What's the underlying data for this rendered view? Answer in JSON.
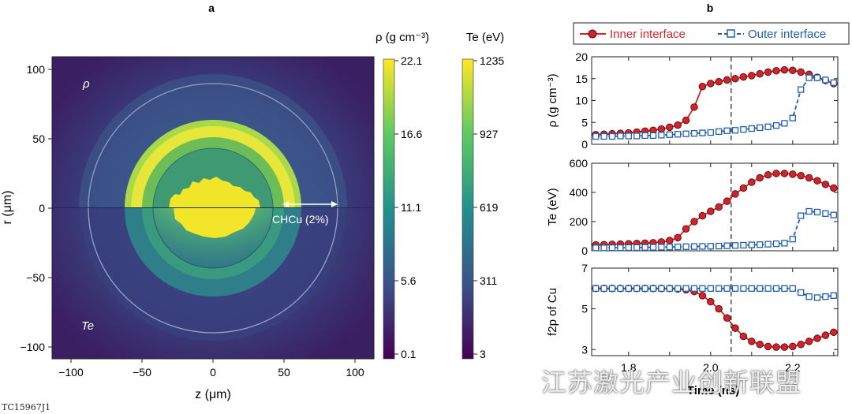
{
  "panel_a": {
    "label": "a",
    "xlabel": "z (μm)",
    "ylabel": "r (μm)",
    "x_ticks": [
      "−100",
      "−50",
      "0",
      "50",
      "100"
    ],
    "y_ticks": [
      "100",
      "50",
      "0",
      "−50",
      "−100"
    ],
    "upper_label": "ρ",
    "lower_label": "Te",
    "annotation": "CHCu (2%)",
    "colorbar_rho": {
      "title": "ρ (g cm⁻³)",
      "ticks": [
        "22.1",
        "16.6",
        "11.1",
        "5.6",
        "0.1"
      ]
    },
    "colorbar_te": {
      "title": "Te (eV)",
      "ticks": [
        "1235",
        "927",
        "619",
        "311",
        "3"
      ]
    }
  },
  "panel_b": {
    "label": "b",
    "xlabel": "Time (ns)",
    "x_ticks": [
      "1.8",
      "2.0",
      "2.2"
    ]
  },
  "figure_id": "TC15967J1",
  "watermark": "江苏激光产业创新联盟",
  "colors": {
    "inner": "#d2232a",
    "outer": "#1f5fb0"
  },
  "chart_data": [
    {
      "type": "heatmap",
      "title": "",
      "xlabel": "z (μm)",
      "ylabel": "r (μm)",
      "xlim": [
        -110,
        110
      ],
      "ylim": [
        -110,
        110
      ],
      "upper_half": "ρ (g cm⁻³)",
      "lower_half": "Te (eV)",
      "rho_range": [
        0.1,
        22.1
      ],
      "te_range": [
        3,
        1235
      ],
      "annotation": "CHCu (2%)"
    },
    {
      "type": "line",
      "xlabel": "Time (ns)",
      "ylabel": "ρ (g cm⁻³)",
      "xlim": [
        1.71,
        2.31
      ],
      "ylim": [
        0,
        20
      ],
      "legend": "top",
      "vline": 2.05,
      "x": [
        1.72,
        1.74,
        1.76,
        1.78,
        1.8,
        1.82,
        1.84,
        1.86,
        1.88,
        1.9,
        1.92,
        1.94,
        1.96,
        1.98,
        2.0,
        2.02,
        2.04,
        2.06,
        2.08,
        2.1,
        2.12,
        2.14,
        2.16,
        2.18,
        2.2,
        2.22,
        2.24,
        2.26,
        2.28,
        2.3
      ],
      "series": [
        {
          "name": "Inner interface",
          "values": [
            2.2,
            2.3,
            2.4,
            2.5,
            2.6,
            2.8,
            3.0,
            3.2,
            3.5,
            3.9,
            4.4,
            5.5,
            8.5,
            13.2,
            13.9,
            14.3,
            14.7,
            15.0,
            15.4,
            15.7,
            16.1,
            16.5,
            16.8,
            17.0,
            16.9,
            16.5,
            16.0,
            15.3,
            14.6,
            13.9
          ]
        },
        {
          "name": "Outer interface",
          "values": [
            1.8,
            1.8,
            1.8,
            1.9,
            1.9,
            1.9,
            2.0,
            2.0,
            2.1,
            2.2,
            2.3,
            2.4,
            2.5,
            2.6,
            2.7,
            2.9,
            3.1,
            3.2,
            3.4,
            3.6,
            3.8,
            4.0,
            4.3,
            4.8,
            6.0,
            12.5,
            15.2,
            15.2,
            14.7,
            14.1
          ]
        }
      ]
    },
    {
      "type": "line",
      "xlabel": "Time (ns)",
      "ylabel": "Te (eV)",
      "xlim": [
        1.71,
        2.31
      ],
      "ylim": [
        0,
        600
      ],
      "vline": 2.05,
      "x": [
        1.72,
        1.74,
        1.76,
        1.78,
        1.8,
        1.82,
        1.84,
        1.86,
        1.88,
        1.9,
        1.92,
        1.94,
        1.96,
        1.98,
        2.0,
        2.02,
        2.04,
        2.06,
        2.08,
        2.1,
        2.12,
        2.14,
        2.16,
        2.18,
        2.2,
        2.22,
        2.24,
        2.26,
        2.28,
        2.3
      ],
      "series": [
        {
          "name": "Inner interface",
          "values": [
            40,
            42,
            44,
            46,
            48,
            50,
            52,
            55,
            60,
            70,
            90,
            150,
            200,
            240,
            270,
            300,
            340,
            390,
            430,
            470,
            500,
            520,
            530,
            530,
            525,
            515,
            500,
            480,
            455,
            430
          ]
        },
        {
          "name": "Outer interface",
          "values": [
            20,
            20,
            21,
            21,
            22,
            22,
            23,
            24,
            25,
            26,
            27,
            28,
            29,
            30,
            31,
            32,
            34,
            36,
            38,
            40,
            42,
            45,
            48,
            52,
            80,
            240,
            270,
            265,
            255,
            245
          ]
        }
      ]
    },
    {
      "type": "line",
      "xlabel": "Time (ns)",
      "ylabel": "f2p of Cu",
      "xlim": [
        1.71,
        2.31
      ],
      "ylim": [
        2.7,
        7
      ],
      "vline": 2.05,
      "x": [
        1.72,
        1.74,
        1.76,
        1.78,
        1.8,
        1.82,
        1.84,
        1.86,
        1.88,
        1.9,
        1.92,
        1.94,
        1.96,
        1.98,
        2.0,
        2.02,
        2.04,
        2.06,
        2.08,
        2.1,
        2.12,
        2.14,
        2.16,
        2.18,
        2.2,
        2.22,
        2.24,
        2.26,
        2.28,
        2.3
      ],
      "series": [
        {
          "name": "Inner interface",
          "values": [
            6.0,
            6.0,
            6.0,
            6.0,
            6.0,
            6.0,
            6.0,
            6.0,
            6.0,
            6.0,
            5.98,
            5.94,
            5.85,
            5.65,
            5.35,
            5.0,
            4.55,
            4.05,
            3.65,
            3.4,
            3.25,
            3.15,
            3.12,
            3.12,
            3.15,
            3.25,
            3.4,
            3.55,
            3.7,
            3.85
          ]
        },
        {
          "name": "Outer interface",
          "values": [
            6.0,
            6.0,
            6.0,
            6.0,
            6.0,
            6.0,
            6.0,
            6.0,
            6.0,
            6.0,
            6.0,
            6.0,
            6.0,
            6.0,
            6.0,
            6.0,
            6.0,
            6.0,
            6.0,
            6.0,
            6.0,
            6.0,
            6.0,
            6.0,
            6.0,
            5.8,
            5.6,
            5.55,
            5.6,
            5.65
          ]
        }
      ]
    }
  ]
}
